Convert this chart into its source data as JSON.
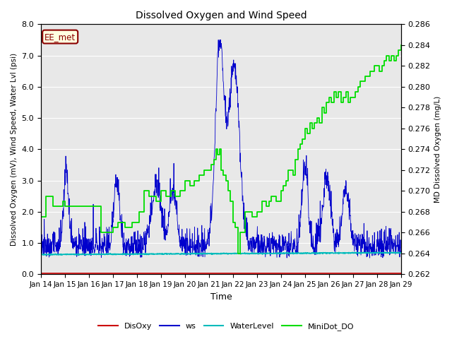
{
  "title": "Dissolved Oxygen and Wind Speed",
  "ylabel_left": "Dissolved Oxygen (mV), Wind Speed, Water Lvl (psi)",
  "ylabel_right": "MD Dissolved Oxygen (mg/L)",
  "xlabel": "Time",
  "annotation": "EE_met",
  "ylim_left": [
    0.0,
    8.0
  ],
  "ylim_right": [
    0.262,
    0.286
  ],
  "xtick_labels": [
    "Jan 14",
    "Jan 15",
    "Jan 16",
    "Jan 17",
    "Jan 18",
    "Jan 19",
    "Jan 20",
    "Jan 21",
    "Jan 22",
    "Jan 23",
    "Jan 24",
    "Jan 25",
    "Jan 26",
    "Jan 27",
    "Jan 28",
    "Jan 29"
  ],
  "yticks_left": [
    0.0,
    1.0,
    2.0,
    3.0,
    4.0,
    5.0,
    6.0,
    7.0,
    8.0
  ],
  "yticks_right": [
    0.262,
    0.264,
    0.266,
    0.268,
    0.27,
    0.272,
    0.274,
    0.276,
    0.278,
    0.28,
    0.282,
    0.284,
    0.286
  ],
  "colors": {
    "DisOxy": "#cc0000",
    "ws": "#0000cc",
    "WaterLevel": "#00bbbb",
    "MiniDot_DO": "#00dd00"
  },
  "legend_labels": [
    "DisOxy",
    "ws",
    "WaterLevel",
    "MiniDot_DO"
  ],
  "plot_bg_color": "#e8e8e8"
}
